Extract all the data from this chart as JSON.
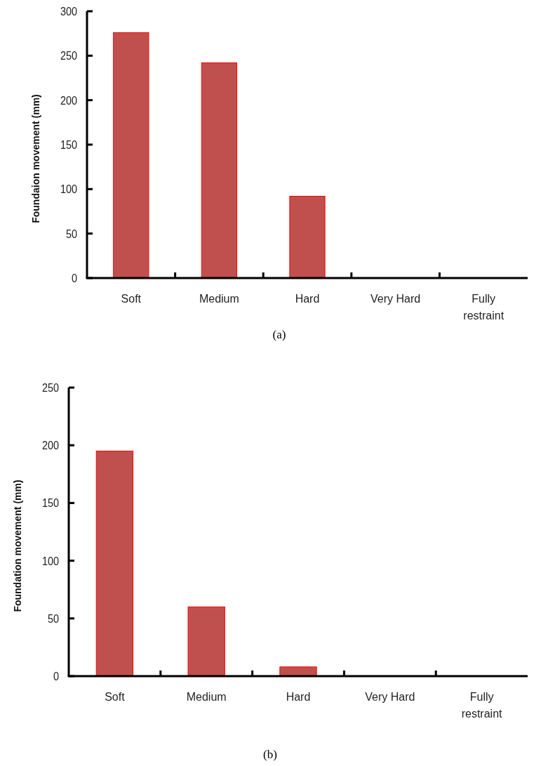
{
  "chart_data": [
    {
      "type": "bar",
      "title": "(a)",
      "ylabel": "Foundaion movement (mm)",
      "categories": [
        "Soft",
        "Medium",
        "Hard",
        "Very Hard",
        "Fully restraint"
      ],
      "values": [
        276,
        242,
        92,
        0,
        0
      ],
      "color": "#c0504d",
      "ylim": [
        0,
        300
      ],
      "yticks": [
        0,
        50,
        100,
        150,
        200,
        250,
        300
      ]
    },
    {
      "type": "bar",
      "title": "(b)",
      "ylabel": "Foundation movement (mm)",
      "categories": [
        "Soft",
        "Medium",
        "Hard",
        "Very Hard",
        "Fully restraint"
      ],
      "values": [
        195,
        60,
        8,
        0,
        0
      ],
      "color": "#c0504d",
      "ylim": [
        0,
        250
      ],
      "yticks": [
        0,
        50,
        100,
        150,
        200,
        250
      ]
    }
  ]
}
